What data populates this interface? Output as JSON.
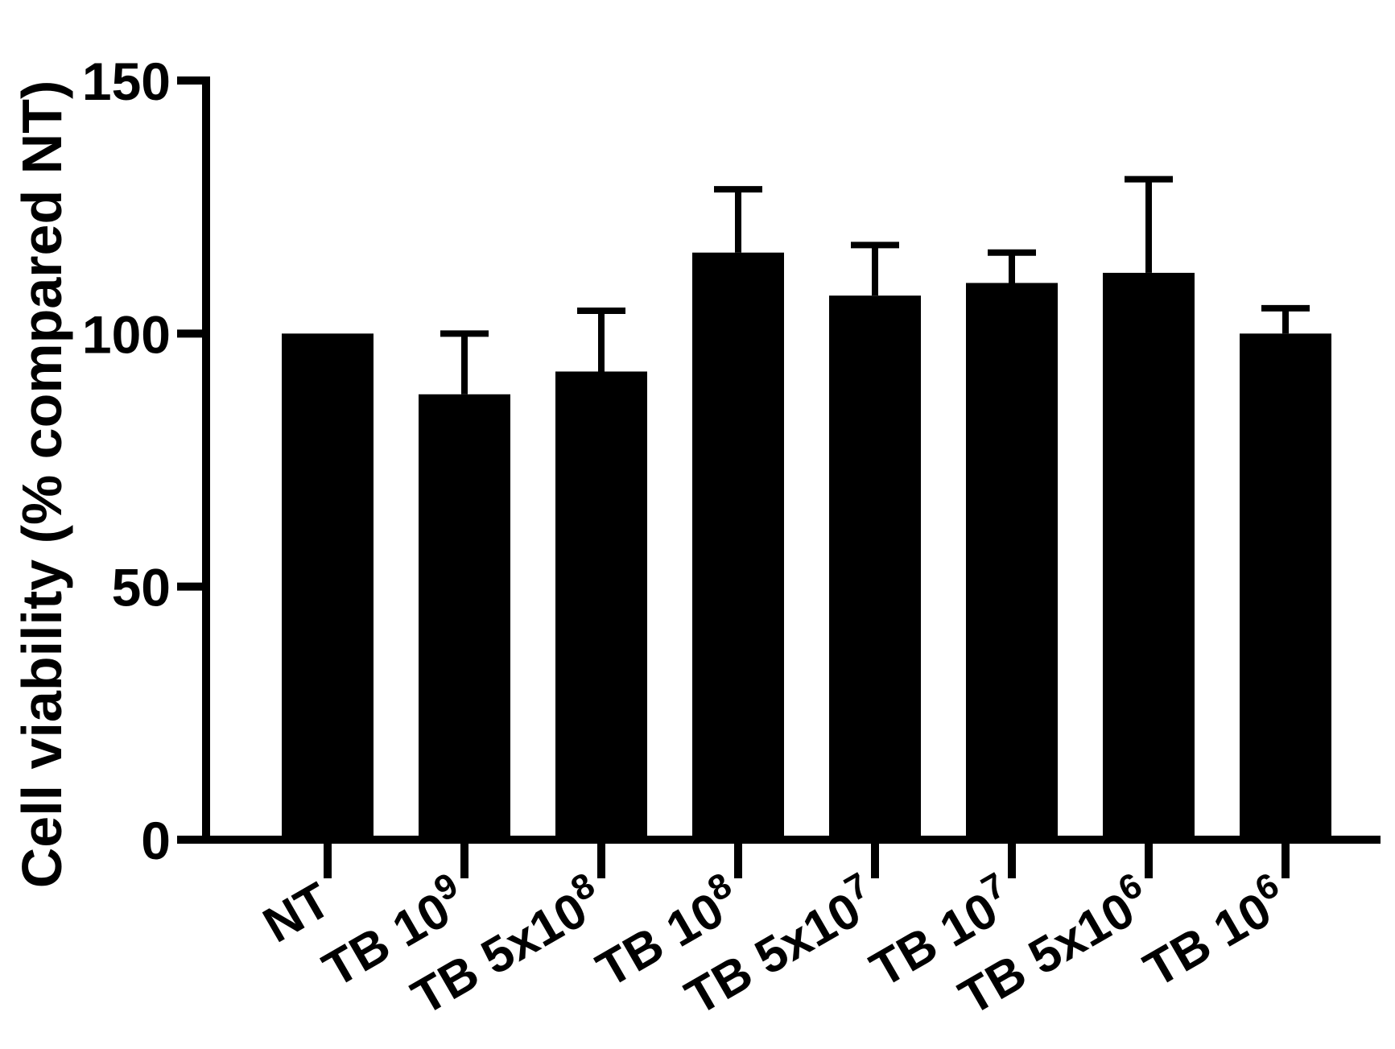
{
  "chart_data": {
    "type": "bar",
    "title": "",
    "xlabel": "",
    "ylabel": "Cell viability (% compared NT)",
    "ylim": [
      0,
      150
    ],
    "yticks": [
      "0",
      "50",
      "100",
      "150"
    ],
    "grid": false,
    "categories": [
      {
        "base": "NT",
        "exp": ""
      },
      {
        "base": "TB 10",
        "exp": "9"
      },
      {
        "base": "TB 5x10",
        "exp": "8"
      },
      {
        "base": "TB 10",
        "exp": "8"
      },
      {
        "base": "TB 5x10",
        "exp": "7"
      },
      {
        "base": "TB 10",
        "exp": "7"
      },
      {
        "base": "TB 5x10",
        "exp": "6"
      },
      {
        "base": "TB 10",
        "exp": "6"
      }
    ],
    "values": [
      100,
      88,
      92.5,
      116,
      107.5,
      110,
      112,
      100
    ],
    "errors": [
      0,
      12,
      12,
      12.5,
      10,
      6,
      18.5,
      5
    ],
    "colors": {
      "bar": "#000000",
      "axis": "#000000"
    }
  }
}
